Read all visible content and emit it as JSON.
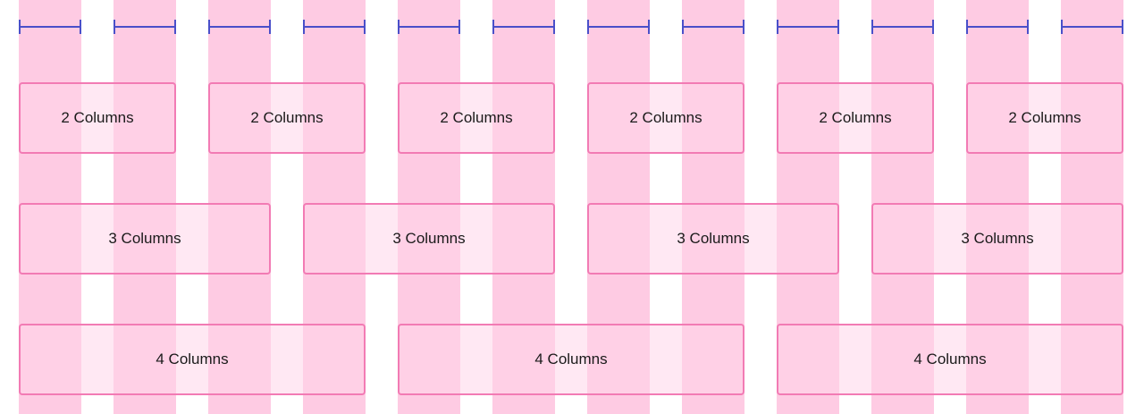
{
  "grid": {
    "columns": 12,
    "column_color": "#fecbe3",
    "measure_color": "#4a4fc9",
    "box_border_color": "#f27bb4"
  },
  "rows": [
    {
      "span": 2,
      "count": 6,
      "labels": [
        "2 Columns",
        "2 Columns",
        "2 Columns",
        "2 Columns",
        "2 Columns",
        "2 Columns"
      ]
    },
    {
      "span": 3,
      "count": 4,
      "labels": [
        "3 Columns",
        "3 Columns",
        "3 Columns",
        "3 Columns"
      ]
    },
    {
      "span": 4,
      "count": 3,
      "labels": [
        "4 Columns",
        "4 Columns",
        "4 Columns"
      ]
    }
  ]
}
